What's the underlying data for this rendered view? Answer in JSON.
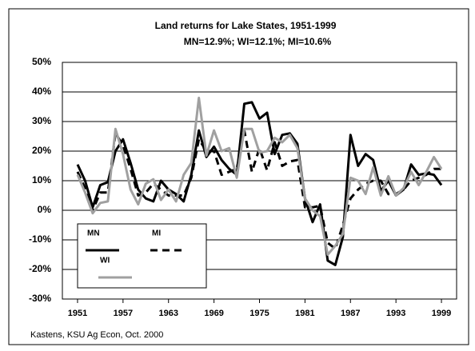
{
  "chart_data": {
    "type": "line",
    "title": "Land returns for Lake States, 1951-1999",
    "subtitle": "MN=12.9%; WI=12.1%; MI=10.6%",
    "source": "Kastens, KSU Ag Econ, Oct. 2000",
    "x": [
      1951,
      1952,
      1953,
      1954,
      1955,
      1956,
      1957,
      1958,
      1959,
      1960,
      1961,
      1962,
      1963,
      1964,
      1965,
      1966,
      1967,
      1968,
      1969,
      1970,
      1971,
      1972,
      1973,
      1974,
      1975,
      1976,
      1977,
      1978,
      1979,
      1980,
      1981,
      1982,
      1983,
      1984,
      1985,
      1986,
      1987,
      1988,
      1989,
      1990,
      1991,
      1992,
      1993,
      1994,
      1995,
      1996,
      1997,
      1998,
      1999
    ],
    "series": [
      {
        "name": "MN",
        "color": "#000000",
        "dash": "solid",
        "values": [
          15.5,
          10,
          1,
          8.5,
          9.5,
          20,
          24,
          16,
          7,
          4,
          3,
          10,
          7,
          5.5,
          3,
          12,
          27,
          18,
          21.5,
          17,
          14,
          12,
          36,
          36.5,
          31,
          33,
          19,
          25.5,
          26,
          22.5,
          4,
          -4,
          2,
          -17,
          -18.5,
          -9,
          25.5,
          15,
          19,
          17,
          6.5,
          10,
          5,
          7,
          15.5,
          12,
          12.5,
          12,
          8.5
        ]
      },
      {
        "name": "MI",
        "color": "#000000",
        "dash": "dashed",
        "values": [
          13,
          7.5,
          0,
          6,
          6,
          26,
          22,
          14,
          5,
          6,
          9,
          7,
          5,
          5,
          5,
          11,
          24,
          20,
          20,
          12,
          13,
          14,
          27,
          13,
          21,
          13.5,
          23,
          15,
          16.5,
          17,
          1,
          1,
          1.5,
          -11,
          -13,
          -5,
          4,
          7,
          9,
          10,
          10,
          5.5,
          5.5,
          7,
          10,
          11,
          12,
          14,
          14
        ]
      },
      {
        "name": "WI",
        "color": "#a0a0a0",
        "dash": "solid",
        "values": [
          12,
          6,
          -1,
          2.5,
          3,
          27.5,
          19,
          7,
          2,
          9,
          10.5,
          3.5,
          7,
          3,
          12,
          16,
          38,
          18.5,
          27,
          20,
          21,
          11,
          27.5,
          27.5,
          19.5,
          20,
          24.5,
          23,
          25.5,
          21,
          4,
          0,
          -2,
          -15,
          -12,
          -8,
          11,
          10,
          5.5,
          14.5,
          5,
          11.5,
          5,
          7.5,
          13,
          8.5,
          13,
          18,
          14
        ]
      }
    ],
    "xlim": [
      1949,
      2001
    ],
    "xticks": [
      1951,
      1957,
      1963,
      1969,
      1975,
      1981,
      1987,
      1993,
      1999
    ],
    "ylim": [
      -30,
      50
    ],
    "yticks": [
      {
        "value": -30,
        "label": "-30%"
      },
      {
        "value": -20,
        "label": "-20%"
      },
      {
        "value": -10,
        "label": "-10%"
      },
      {
        "value": 0,
        "label": "0%"
      },
      {
        "value": 10,
        "label": "10%"
      },
      {
        "value": 20,
        "label": "20%"
      },
      {
        "value": 30,
        "label": "30%"
      },
      {
        "value": 40,
        "label": "40%"
      },
      {
        "value": 50,
        "label": "50%"
      }
    ],
    "grid": true,
    "legend": "lower left"
  }
}
